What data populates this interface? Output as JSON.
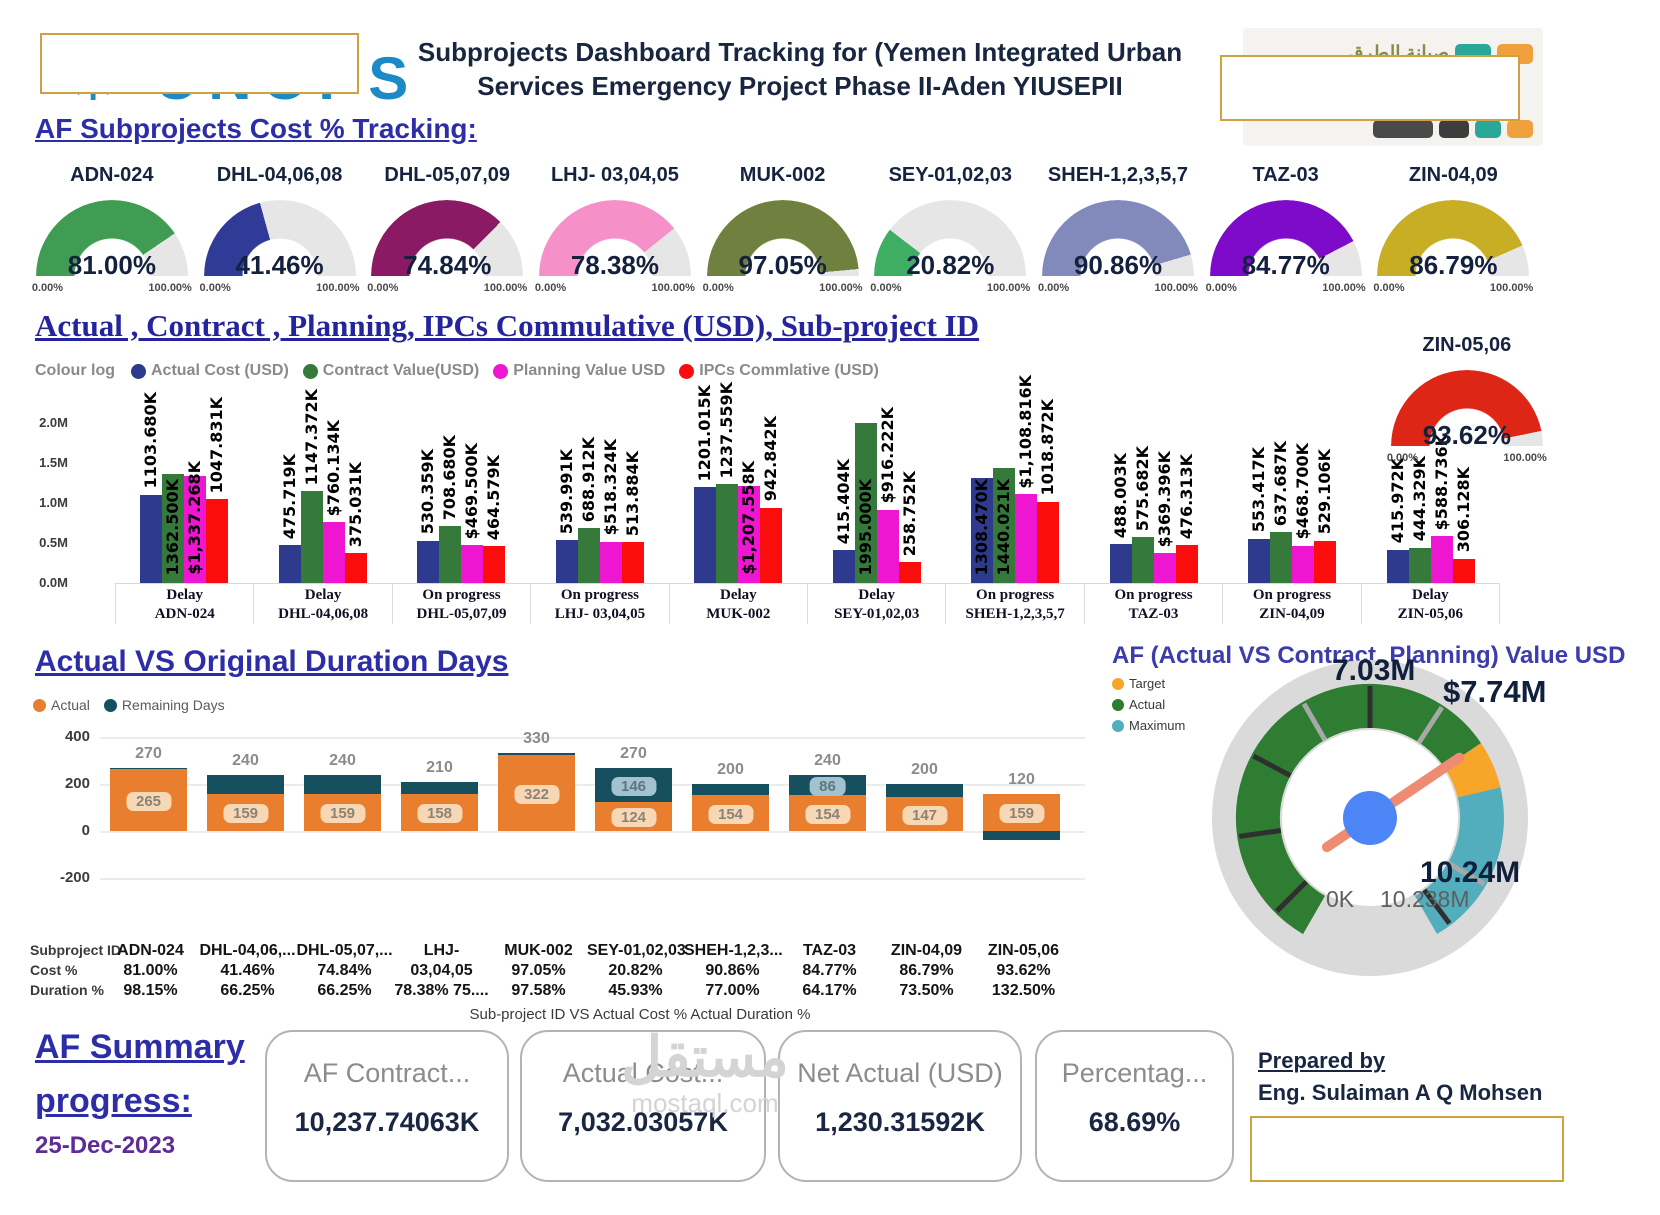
{
  "header": {
    "title_line1": "Subprojects Dashboard Tracking for (Yemen Integrated Urban",
    "title_line2": "Services Emergency Project Phase II-Aden YIUSEPII",
    "left_logo_fragment": "✳ UNOPS",
    "right_logo_fragment_ar": "صيانة الطرق"
  },
  "cost_tracking": {
    "heading": "AF Subprojects Cost % Tracking:",
    "min_label": "0.00%",
    "max_label": "100.00%",
    "gauges": [
      {
        "id": "ADN-024",
        "value": "81.00%",
        "pct": 81.0,
        "color": "#3f9c52"
      },
      {
        "id": "DHL-04,06,08",
        "value": "41.46%",
        "pct": 41.46,
        "color": "#2f3b97"
      },
      {
        "id": "DHL-05,07,09",
        "value": "74.84%",
        "pct": 74.84,
        "color": "#8a1a63"
      },
      {
        "id": "LHJ- 03,04,05",
        "value": "78.38%",
        "pct": 78.38,
        "color": "#f590c8"
      },
      {
        "id": "MUK-002",
        "value": "97.05%",
        "pct": 97.05,
        "color": "#70803f"
      },
      {
        "id": "SEY-01,02,03",
        "value": "20.82%",
        "pct": 20.82,
        "color": "#3fae62"
      },
      {
        "id": "SHEH-1,2,3,5,7",
        "value": "90.86%",
        "pct": 90.86,
        "color": "#8289bb"
      },
      {
        "id": "TAZ-03",
        "value": "84.77%",
        "pct": 84.77,
        "color": "#7e0bca"
      },
      {
        "id": "ZIN-04,09",
        "value": "86.79%",
        "pct": 86.79,
        "color": "#c8ae25"
      }
    ],
    "zin": {
      "id": "ZIN-05,06",
      "value": "93.62%",
      "pct": 93.62,
      "color": "#dd2616"
    }
  },
  "chart_data": [
    {
      "type": "bar",
      "title": "Actual , Contract , Planning, IPCs Commulative (USD), Sub-project ID",
      "legend_title": "Colour log",
      "series_names": [
        "Actual Cost (USD)",
        "Contract Value(USD)",
        "Planning Value USD",
        "IPCs Commlative (USD)"
      ],
      "series_colors": [
        "#2d3a8d",
        "#35793b",
        "#ef16d2",
        "#fb0d0d"
      ],
      "ylabels": [
        "2.0M",
        "1.5M",
        "1.0M",
        "0.5M",
        "0.0M"
      ],
      "ylim_k": [
        0,
        2000
      ],
      "categories": [
        {
          "status": "Delay",
          "id": "ADN-024"
        },
        {
          "status": "Delay",
          "id": "DHL-04,06,08"
        },
        {
          "status": "On progress",
          "id": "DHL-05,07,09"
        },
        {
          "status": "On progress",
          "id": "LHJ- 03,04,05"
        },
        {
          "status": "Delay",
          "id": "MUK-002"
        },
        {
          "status": "Delay",
          "id": "SEY-01,02,03"
        },
        {
          "status": "On progress",
          "id": "SHEH-1,2,3,5,7"
        },
        {
          "status": "On progress",
          "id": "TAZ-03"
        },
        {
          "status": "On progress",
          "id": "ZIN-04,09"
        },
        {
          "status": "Delay",
          "id": "ZIN-05,06"
        }
      ],
      "values_k": [
        [
          1103.68,
          1362.5,
          1337.268,
          1047.831
        ],
        [
          475.719,
          1147.372,
          760.134,
          375.031
        ],
        [
          530.359,
          708.68,
          469.5,
          464.579
        ],
        [
          539.991,
          688.912,
          518.324,
          513.884
        ],
        [
          1201.015,
          1237.559,
          1207.558,
          942.842
        ],
        [
          415.404,
          1995.0,
          916.222,
          258.752
        ],
        [
          1308.47,
          1440.021,
          1108.816,
          1018.872
        ],
        [
          488.003,
          575.682,
          369.396,
          476.313
        ],
        [
          553.417,
          637.687,
          468.7,
          529.106
        ],
        [
          415.972,
          444.329,
          588.736,
          306.128
        ]
      ],
      "labels": [
        [
          "1103.680K",
          "1362.500K",
          "$1,337.268K",
          "1047.831K"
        ],
        [
          "475.719K",
          "1147.372K",
          "$760.134K",
          "375.031K"
        ],
        [
          "530.359K",
          "708.680K",
          "$469.500K",
          "464.579K"
        ],
        [
          "539.991K",
          "688.912K",
          "$518.324K",
          "513.884K"
        ],
        [
          "1201.015K",
          "1237.559K",
          "$1,207.558K",
          "942.842K"
        ],
        [
          "415.404K",
          "1995.000K",
          "$916.222K",
          "258.752K"
        ],
        [
          "1308.470K",
          "1440.021K",
          "$1,108.816K",
          "1018.872K"
        ],
        [
          "488.003K",
          "575.682K",
          "$369.396K",
          "476.313K"
        ],
        [
          "553.417K",
          "637.687K",
          "$468.700K",
          "529.106K"
        ],
        [
          "415.972K",
          "444.329K",
          "$588.736K",
          "306.128K"
        ]
      ],
      "label_inside": [
        [
          false,
          true,
          true,
          false
        ],
        [
          false,
          false,
          false,
          false
        ],
        [
          false,
          false,
          false,
          false
        ],
        [
          false,
          false,
          false,
          false
        ],
        [
          false,
          false,
          true,
          false
        ],
        [
          false,
          true,
          false,
          false
        ],
        [
          true,
          true,
          false,
          false
        ],
        [
          false,
          false,
          false,
          false
        ],
        [
          false,
          false,
          false,
          false
        ],
        [
          false,
          false,
          false,
          false
        ]
      ]
    },
    {
      "type": "bar-stacked",
      "title": "Actual VS Original Duration Days",
      "legend": [
        {
          "label": "Actual",
          "color": "#e87e2e"
        },
        {
          "label": "Remaining Days",
          "color": "#164f5e"
        }
      ],
      "yticks": [
        {
          "label": "400",
          "v": 400
        },
        {
          "label": "200",
          "v": 200
        },
        {
          "label": "0",
          "v": 0
        },
        {
          "label": "-200",
          "v": -200
        }
      ],
      "categories": [
        "ADN-024",
        "DHL-04,06,08",
        "DHL-05,07,09",
        "LHJ- 03,04,05",
        "MUK-002",
        "SEY-01,02,03",
        "SHEH-1,2,3,5,7",
        "TAZ-03",
        "ZIN-04,09",
        "ZIN-05,06"
      ],
      "totals": [
        270,
        240,
        240,
        210,
        330,
        270,
        200,
        240,
        200,
        120
      ],
      "actual": [
        265,
        159,
        159,
        158,
        322,
        124,
        154,
        154,
        147,
        159
      ],
      "remaining": [
        5,
        81,
        81,
        52,
        8,
        146,
        46,
        86,
        53,
        -39
      ],
      "actual_labels": [
        "265",
        "159",
        "159",
        "158",
        "322",
        "124",
        "154",
        "154",
        "147",
        "159"
      ],
      "remaining_labels": [
        null,
        null,
        null,
        null,
        null,
        "146",
        null,
        "86",
        null,
        null
      ]
    },
    {
      "type": "gauge",
      "title": "AF (Actual VS Contract, Planning) Value USD",
      "legend": [
        {
          "label": "Target",
          "color": "#f7a62a"
        },
        {
          "label": "Actual",
          "color": "#2e7d32"
        },
        {
          "label": "Maximum",
          "color": "#52aebc"
        }
      ],
      "actual": 7.03,
      "target": 7.74,
      "max": 10.238,
      "actual_label": "7.03M",
      "target_label": "$7.74M",
      "max_label": "10.24M",
      "min_inner_label": "0K",
      "max_inner_label": "10.238M",
      "needle_color": "#ef8a73",
      "hub_color": "#4c86f6"
    }
  ],
  "table": {
    "row_labels": [
      "Subproject ID",
      "Cost %",
      "Duration %"
    ],
    "columns": [
      {
        "id": "ADN-024",
        "cost": "81.00%",
        "duration": "98.15%"
      },
      {
        "id": "DHL-04,06,...",
        "cost": "41.46%",
        "duration": "66.25%"
      },
      {
        "id": "DHL-05,07,...",
        "cost": "74.84%",
        "duration": "66.25%"
      },
      {
        "id": "LHJ-",
        "cost": "03,04,05",
        "duration": "78.38% 75...."
      },
      {
        "id": "MUK-002",
        "cost": "97.05%",
        "duration": "97.58%"
      },
      {
        "id": "SEY-01,02,03",
        "cost": "20.82%",
        "duration": "45.93%"
      },
      {
        "id": "SHEH-1,2,3...",
        "cost": "90.86%",
        "duration": "77.00%"
      },
      {
        "id": "TAZ-03",
        "cost": "84.77%",
        "duration": "64.17%"
      },
      {
        "id": "ZIN-04,09",
        "cost": "86.79%",
        "duration": "73.50%"
      },
      {
        "id": "ZIN-05,06",
        "cost": "93.62%",
        "duration": "132.50%"
      }
    ],
    "caption": "Sub-project ID VS Actual Cost % Actual Duration %"
  },
  "summary": {
    "heading_line1": "AF Summary",
    "heading_line2": "progress:",
    "date": "25-Dec-2023",
    "cards": [
      {
        "label": "AF Contract...",
        "value": "10,237.74063K"
      },
      {
        "label": "Actual Cost...",
        "value": "7,032.03057K"
      },
      {
        "label": "Net Actual (USD)",
        "value": "1,230.31592K"
      },
      {
        "label": "Percentag...",
        "value": "68.69%"
      }
    ],
    "prepared_by": "Prepared by",
    "prepared_name": "Eng. Sulaiman A Q Mohsen",
    "watermark_ar": "مستقل",
    "watermark_en": "mostaql.com"
  }
}
